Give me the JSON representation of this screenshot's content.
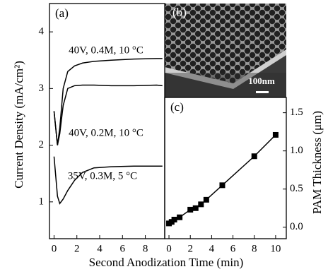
{
  "chart_data": [
    {
      "type": "line",
      "panel_label": "(a)",
      "ylabel": "Current Density (mA/cm²)",
      "xlabel": "Second Anodization Time (min)",
      "x": [
        0,
        0.3,
        0.5,
        0.8,
        1.2,
        1.8,
        2.5,
        3.5,
        5,
        7,
        9,
        9.5
      ],
      "series": [
        {
          "name": "40V, 0.4M, 10 °C",
          "color": "#000000",
          "values": [
            2.6,
            2.0,
            2.3,
            3.0,
            3.3,
            3.4,
            3.45,
            3.48,
            3.5,
            3.52,
            3.53,
            3.53
          ]
        },
        {
          "name": "40V, 0.2M, 10 °C",
          "color": "#000000",
          "values": [
            2.6,
            2.0,
            2.2,
            2.7,
            3.0,
            3.05,
            3.06,
            3.06,
            3.05,
            3.05,
            3.06,
            3.05
          ]
        },
        {
          "name": "35V, 0.3M, 5 °C",
          "color": "#000000",
          "values": [
            1.8,
            1.1,
            0.97,
            1.05,
            1.2,
            1.38,
            1.52,
            1.6,
            1.62,
            1.63,
            1.63,
            1.63
          ]
        }
      ],
      "xlim": [
        -0.4,
        9.7
      ],
      "xticks": [
        0,
        2,
        4,
        6,
        8
      ],
      "ylim": [
        0.35,
        4.5
      ],
      "yticks": [
        1,
        2,
        3,
        4
      ]
    },
    {
      "type": "scatter",
      "panel_label": "(c)",
      "ylabel": "PAM Thickness (μm)",
      "x": [
        0,
        0.25,
        0.5,
        1,
        2,
        2.5,
        3,
        3.5,
        5,
        8,
        10
      ],
      "values": [
        0.05,
        0.07,
        0.1,
        0.13,
        0.23,
        0.25,
        0.3,
        0.36,
        0.55,
        0.93,
        1.21
      ],
      "color": "#000000",
      "fit_line": true,
      "xlim": [
        -0.4,
        11
      ],
      "xticks": [
        0,
        2,
        4,
        6,
        8,
        10
      ],
      "ylim": [
        -0.15,
        1.7
      ],
      "yticks": [
        {
          "value": 0,
          "label": "0.0"
        },
        0.5,
        {
          "value": 1,
          "label": "1.0"
        },
        1.5
      ]
    }
  ],
  "inset_b": {
    "label": "(b)",
    "scale_bar": "100nm"
  }
}
